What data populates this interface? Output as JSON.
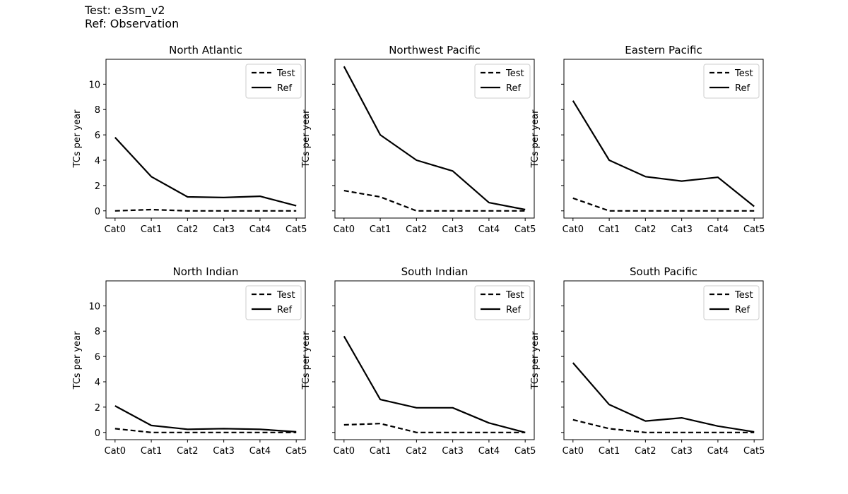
{
  "header": {
    "test_label": "Test: e3sm_v2",
    "ref_label": "Ref: Observation"
  },
  "colors": {
    "line": "#000000",
    "legend_border": "#cccccc"
  },
  "chart_data": [
    {
      "type": "line",
      "title": "North Atlantic",
      "xlabel": "",
      "ylabel": "TCs per year",
      "categories": [
        "Cat0",
        "Cat1",
        "Cat2",
        "Cat3",
        "Cat4",
        "Cat5"
      ],
      "yticks": [
        0,
        2,
        4,
        6,
        8,
        10
      ],
      "ylim": [
        -0.57,
        11.97
      ],
      "legend": "top-right",
      "show_yticklabels": true,
      "series": [
        {
          "name": "Test",
          "style": "dashed",
          "values": [
            0.0,
            0.1,
            0.0,
            0.0,
            0.0,
            0.0
          ]
        },
        {
          "name": "Ref",
          "style": "solid",
          "values": [
            5.8,
            2.7,
            1.1,
            1.05,
            1.15,
            0.4
          ]
        }
      ]
    },
    {
      "type": "line",
      "title": "Northwest Pacific",
      "xlabel": "",
      "ylabel": "TCs per year",
      "categories": [
        "Cat0",
        "Cat1",
        "Cat2",
        "Cat3",
        "Cat4",
        "Cat5"
      ],
      "yticks": [
        0,
        2,
        4,
        6,
        8,
        10
      ],
      "ylim": [
        -0.57,
        11.97
      ],
      "legend": "top-right",
      "show_yticklabels": false,
      "series": [
        {
          "name": "Test",
          "style": "dashed",
          "values": [
            1.6,
            1.1,
            0.0,
            0.0,
            0.0,
            0.0
          ]
        },
        {
          "name": "Ref",
          "style": "solid",
          "values": [
            11.4,
            6.0,
            4.0,
            3.15,
            0.65,
            0.1
          ]
        }
      ]
    },
    {
      "type": "line",
      "title": "Eastern Pacific",
      "xlabel": "",
      "ylabel": "TCs per year",
      "categories": [
        "Cat0",
        "Cat1",
        "Cat2",
        "Cat3",
        "Cat4",
        "Cat5"
      ],
      "yticks": [
        0,
        2,
        4,
        6,
        8,
        10
      ],
      "ylim": [
        -0.57,
        11.97
      ],
      "legend": "top-right",
      "show_yticklabels": false,
      "series": [
        {
          "name": "Test",
          "style": "dashed",
          "values": [
            1.0,
            0.0,
            0.0,
            0.0,
            0.0,
            0.0
          ]
        },
        {
          "name": "Ref",
          "style": "solid",
          "values": [
            8.7,
            4.0,
            2.7,
            2.35,
            2.65,
            0.35
          ]
        }
      ]
    },
    {
      "type": "line",
      "title": "North Indian",
      "xlabel": "",
      "ylabel": "TCs per year",
      "categories": [
        "Cat0",
        "Cat1",
        "Cat2",
        "Cat3",
        "Cat4",
        "Cat5"
      ],
      "yticks": [
        0,
        2,
        4,
        6,
        8,
        10
      ],
      "ylim": [
        -0.57,
        11.97
      ],
      "legend": "top-right",
      "show_yticklabels": true,
      "series": [
        {
          "name": "Test",
          "style": "dashed",
          "values": [
            0.3,
            0.0,
            0.0,
            0.0,
            0.0,
            0.0
          ]
        },
        {
          "name": "Ref",
          "style": "solid",
          "values": [
            2.1,
            0.55,
            0.25,
            0.3,
            0.25,
            0.05
          ]
        }
      ]
    },
    {
      "type": "line",
      "title": "South Indian",
      "xlabel": "",
      "ylabel": "TCs per year",
      "categories": [
        "Cat0",
        "Cat1",
        "Cat2",
        "Cat3",
        "Cat4",
        "Cat5"
      ],
      "yticks": [
        0,
        2,
        4,
        6,
        8,
        10
      ],
      "ylim": [
        -0.57,
        11.97
      ],
      "legend": "top-right",
      "show_yticklabels": false,
      "series": [
        {
          "name": "Test",
          "style": "dashed",
          "values": [
            0.6,
            0.7,
            0.0,
            0.0,
            0.0,
            0.0
          ]
        },
        {
          "name": "Ref",
          "style": "solid",
          "values": [
            7.6,
            2.6,
            1.95,
            1.95,
            0.75,
            0.0
          ]
        }
      ]
    },
    {
      "type": "line",
      "title": "South Pacific",
      "xlabel": "",
      "ylabel": "TCs per year",
      "categories": [
        "Cat0",
        "Cat1",
        "Cat2",
        "Cat3",
        "Cat4",
        "Cat5"
      ],
      "yticks": [
        0,
        2,
        4,
        6,
        8,
        10
      ],
      "ylim": [
        -0.57,
        11.97
      ],
      "legend": "top-right",
      "show_yticklabels": false,
      "series": [
        {
          "name": "Test",
          "style": "dashed",
          "values": [
            1.0,
            0.3,
            0.0,
            0.0,
            0.0,
            0.0
          ]
        },
        {
          "name": "Ref",
          "style": "solid",
          "values": [
            5.5,
            2.2,
            0.9,
            1.15,
            0.5,
            0.05
          ]
        }
      ]
    }
  ]
}
